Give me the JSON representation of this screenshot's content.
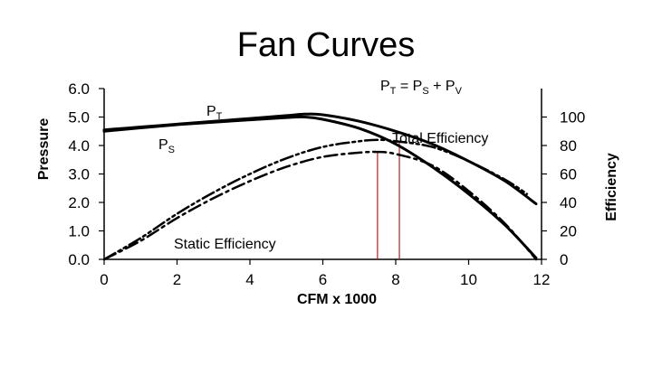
{
  "chart_data": {
    "type": "line",
    "title": "Fan Curves",
    "formula": {
      "lead": "P",
      "lead_sub": "T",
      "eq": " = P",
      "s_sub": "S",
      "plus": " + P",
      "v_sub": "V"
    },
    "xlabel": "CFM x 1000",
    "ylabel": "Pressure",
    "y2label": "Efficiency",
    "xlim": [
      0,
      12
    ],
    "ylim": [
      0,
      6
    ],
    "y2lim": [
      0,
      120
    ],
    "xticks": [
      "0",
      "2",
      "4",
      "6",
      "8",
      "10",
      "12"
    ],
    "yticks": [
      "0.0",
      "1.0",
      "2.0",
      "3.0",
      "4.0",
      "5.0",
      "6.0"
    ],
    "y2ticks": [
      "0",
      "20",
      "40",
      "60",
      "80",
      "100"
    ],
    "series": [
      {
        "name": "PT",
        "axis": "left",
        "style": "solid",
        "x": [
          0,
          1,
          2,
          3,
          4,
          5,
          5.5,
          6,
          7,
          8,
          9,
          10,
          11,
          11.85
        ],
        "y": [
          4.55,
          4.65,
          4.75,
          4.85,
          4.95,
          5.05,
          5.1,
          5.08,
          4.85,
          4.5,
          4.05,
          3.45,
          2.75,
          1.95
        ]
      },
      {
        "name": "PS",
        "axis": "left",
        "style": "solid",
        "x": [
          0,
          1,
          2,
          3,
          4,
          5,
          5.5,
          6,
          7,
          8,
          9,
          10,
          11,
          11.85
        ],
        "y": [
          4.5,
          4.62,
          4.73,
          4.82,
          4.9,
          4.98,
          5.0,
          4.92,
          4.6,
          4.05,
          3.25,
          2.3,
          1.2,
          0.05
        ]
      },
      {
        "name": "Total Efficiency",
        "axis": "right",
        "style": "dashdotdot",
        "x": [
          0,
          1,
          2,
          3,
          4,
          5,
          6,
          7,
          7.5,
          8,
          9,
          10,
          11,
          11.6
        ],
        "y": [
          0,
          15,
          32,
          47,
          60,
          71,
          79,
          83,
          84,
          83,
          79,
          69,
          56,
          46
        ]
      },
      {
        "name": "Static Efficiency",
        "axis": "right",
        "style": "dashdot",
        "x": [
          0,
          1,
          2,
          3,
          4,
          5,
          6,
          7,
          7.5,
          8,
          9,
          10,
          11,
          11.85
        ],
        "y": [
          0,
          13,
          29,
          43,
          55,
          65,
          72,
          75,
          75.5,
          74,
          66,
          48,
          25,
          0
        ]
      }
    ],
    "markers": [
      {
        "x": 7.5,
        "y_top": 75.5,
        "axis": "right"
      },
      {
        "x": 8.1,
        "y_top": 83,
        "axis": "right"
      }
    ],
    "labels": {
      "pt": {
        "main": "P",
        "sub": "T"
      },
      "ps": {
        "main": "P",
        "sub": "S"
      },
      "total_eff": "Total Efficiency",
      "static_eff": "Static Efficiency"
    },
    "grid": false,
    "legend": "none",
    "colors": {
      "curve": "#000000",
      "marker": "#b22222"
    }
  }
}
